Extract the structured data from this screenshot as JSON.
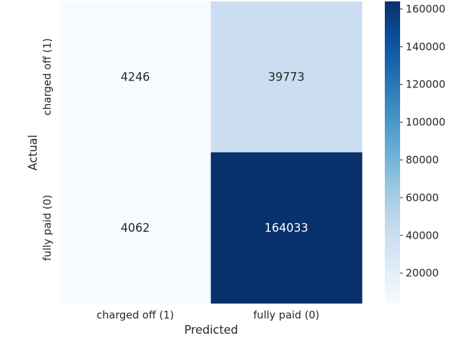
{
  "chart_data": {
    "type": "heatmap",
    "title": "",
    "xlabel": "Predicted",
    "ylabel": "Actual",
    "x_categories": [
      "charged off (1)",
      "fully paid (0)"
    ],
    "y_categories": [
      "charged off (1)",
      "fully paid (0)"
    ],
    "values": [
      [
        4246,
        39773
      ],
      [
        4062,
        164033
      ]
    ],
    "value_labels": [
      [
        "4246",
        "39773"
      ],
      [
        "4062",
        "164033"
      ]
    ],
    "colormap": "Blues",
    "color_range": [
      4062,
      164033
    ],
    "colorbar_ticks": [
      20000,
      40000,
      60000,
      80000,
      100000,
      120000,
      140000,
      160000
    ],
    "colorbar_tick_labels": [
      "20000",
      "40000",
      "60000",
      "80000",
      "100000",
      "120000",
      "140000",
      "160000"
    ],
    "grid": false
  }
}
